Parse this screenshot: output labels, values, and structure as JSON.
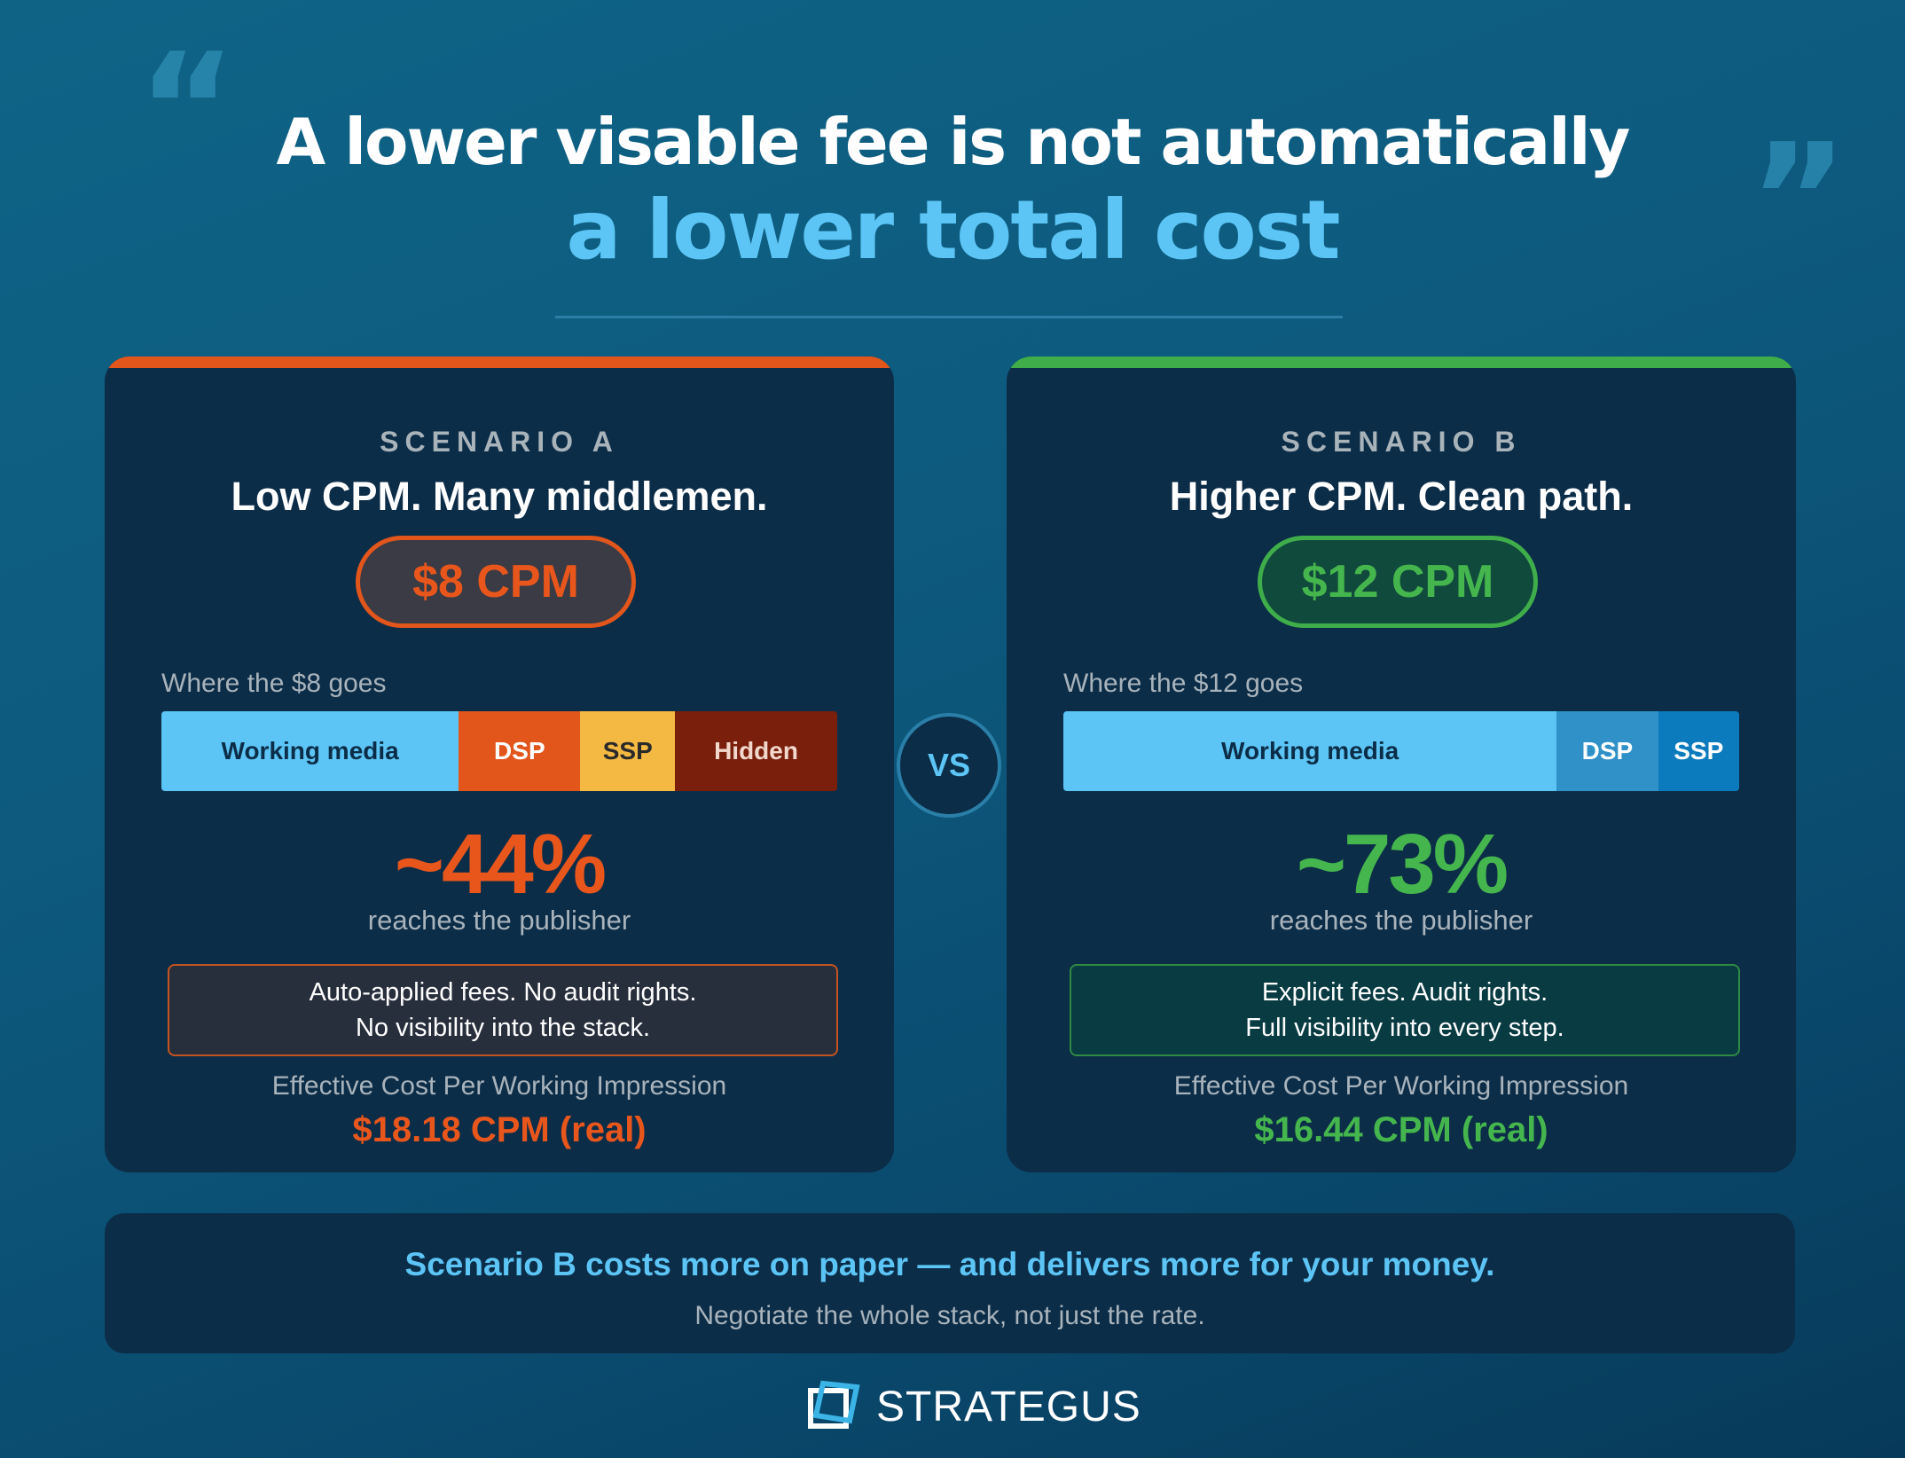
{
  "headline": {
    "line1": "A lower visable fee is not automatically",
    "line2": "a lower total cost"
  },
  "decor": {
    "open_quote": "“",
    "close_quote": "”"
  },
  "colors": {
    "accent_blue": "#5cc5f5",
    "scenario_a": "#e2561c",
    "scenario_b": "#3fae4a",
    "card_bg": "#0c2d48"
  },
  "vs_label": "VS",
  "scenario_a": {
    "label": "SCENARIO A",
    "title": "Low CPM. Many middlemen.",
    "price": "$8 CPM",
    "where_label": "Where the $8 goes",
    "breakdown": [
      {
        "label": "Working media",
        "share_percent": 44,
        "color": "#5cc5f5",
        "text_color": "#0c2d48"
      },
      {
        "label": "DSP",
        "share_percent": 18,
        "color": "#e2561c",
        "text_color": "#ffffff"
      },
      {
        "label": "SSP",
        "share_percent": 14,
        "color": "#f4b942",
        "text_color": "#2a2a2a"
      },
      {
        "label": "Hidden",
        "share_percent": 24,
        "color": "#7a1f0c",
        "text_color": "#f2d8cc"
      }
    ],
    "percent": "~44%",
    "reaches_label": "reaches the publisher",
    "note_line1": "Auto-applied fees. No audit rights.",
    "note_line2": "No visibility into the stack.",
    "effective_label": "Effective Cost Per Working Impression",
    "effective_value": "$18.18 CPM (real)"
  },
  "scenario_b": {
    "label": "SCENARIO B",
    "title": "Higher CPM. Clean path.",
    "price": "$12 CPM",
    "where_label": "Where the $12 goes",
    "breakdown": [
      {
        "label": "Working media",
        "share_percent": 73,
        "color": "#5cc5f5",
        "text_color": "#0c2d48"
      },
      {
        "label": "DSP",
        "share_percent": 15,
        "color": "#2f91c8",
        "text_color": "#ffffff"
      },
      {
        "label": "SSP",
        "share_percent": 12,
        "color": "#0c7bbd",
        "text_color": "#ffffff"
      }
    ],
    "percent": "~73%",
    "reaches_label": "reaches the publisher",
    "note_line1": "Explicit fees. Audit rights.",
    "note_line2": "Full visibility into every step.",
    "effective_label": "Effective Cost Per Working Impression",
    "effective_value": "$16.44 CPM (real)"
  },
  "summary": {
    "main": "Scenario B costs more on paper — and delivers more for your money.",
    "sub": "Negotiate the whole stack, not just the rate."
  },
  "brand": {
    "name": "STRATEGUS",
    "icon": "strategus-logo-icon"
  }
}
